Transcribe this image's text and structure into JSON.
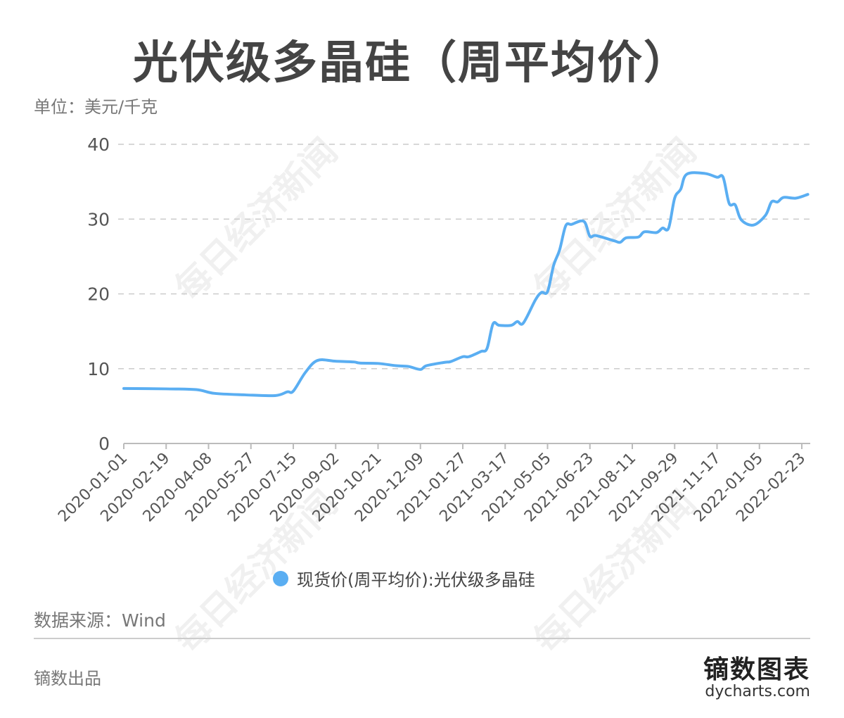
{
  "title": "光伏级多晶硅（周平均价）",
  "unit": "单位：美元/千克",
  "watermark": "每日经济新闻",
  "source": "数据来源：Wind",
  "made_by": "镝数出品",
  "logo": {
    "cn": "镝数图表",
    "en": "dycharts.com"
  },
  "colors": {
    "line": "#5aaef2",
    "grid": "#cccccc"
  },
  "chart_data": {
    "type": "line",
    "title": "光伏级多晶硅（周平均价）",
    "ylabel": "单位：美元/千克",
    "ylim": [
      0,
      40
    ],
    "yticks": [
      0,
      10,
      20,
      30,
      40
    ],
    "xticks": [
      "2020-01-01",
      "2020-02-19",
      "2020-04-08",
      "2020-05-27",
      "2020-07-15",
      "2020-09-02",
      "2020-10-21",
      "2020-12-09",
      "2021-01-27",
      "2021-03-17",
      "2021-05-05",
      "2021-06-23",
      "2021-08-11",
      "2021-09-29",
      "2021-11-17",
      "2022-01-05",
      "2022-02-23"
    ],
    "grid": "horizontal dashed",
    "legend_position": "bottom",
    "series": [
      {
        "name": "现货价(周平均价):光伏级多晶硅",
        "x": [
          "2020-01-01",
          "2020-02-19",
          "2020-03-25",
          "2020-04-15",
          "2020-05-20",
          "2020-06-24",
          "2020-07-08",
          "2020-07-15",
          "2020-07-29",
          "2020-08-12",
          "2020-09-02",
          "2020-09-23",
          "2020-09-30",
          "2020-10-21",
          "2020-11-11",
          "2020-11-25",
          "2020-12-09",
          "2020-12-16",
          "2021-01-06",
          "2021-01-13",
          "2021-01-27",
          "2021-02-03",
          "2021-02-17",
          "2021-02-24",
          "2021-03-03",
          "2021-03-10",
          "2021-03-24",
          "2021-03-31",
          "2021-04-07",
          "2021-04-21",
          "2021-04-28",
          "2021-05-05",
          "2021-05-12",
          "2021-05-19",
          "2021-05-26",
          "2021-06-02",
          "2021-06-16",
          "2021-06-23",
          "2021-06-30",
          "2021-07-21",
          "2021-07-28",
          "2021-08-04",
          "2021-08-18",
          "2021-08-25",
          "2021-09-08",
          "2021-09-15",
          "2021-09-22",
          "2021-09-29",
          "2021-10-06",
          "2021-10-13",
          "2021-11-03",
          "2021-11-17",
          "2021-11-24",
          "2021-12-01",
          "2021-12-08",
          "2021-12-15",
          "2021-12-29",
          "2022-01-12",
          "2022-01-19",
          "2022-01-26",
          "2022-02-02",
          "2022-02-16",
          "2022-03-02"
        ],
        "y": [
          7.35,
          7.3,
          7.2,
          6.7,
          6.5,
          6.4,
          6.9,
          7.0,
          9.5,
          11.1,
          11.0,
          10.9,
          10.75,
          10.7,
          10.4,
          10.3,
          9.9,
          10.4,
          10.85,
          10.95,
          11.6,
          11.6,
          12.3,
          12.7,
          16.0,
          15.8,
          15.8,
          16.3,
          16.1,
          19.2,
          20.2,
          20.3,
          23.8,
          25.9,
          29.1,
          29.3,
          29.7,
          27.7,
          27.8,
          27.1,
          26.9,
          27.5,
          27.6,
          28.3,
          28.2,
          28.8,
          28.8,
          32.8,
          34.0,
          36.0,
          36.1,
          35.6,
          35.6,
          32.1,
          31.9,
          29.9,
          29.2,
          30.5,
          32.3,
          32.3,
          32.9,
          32.8,
          33.3
        ]
      }
    ]
  }
}
